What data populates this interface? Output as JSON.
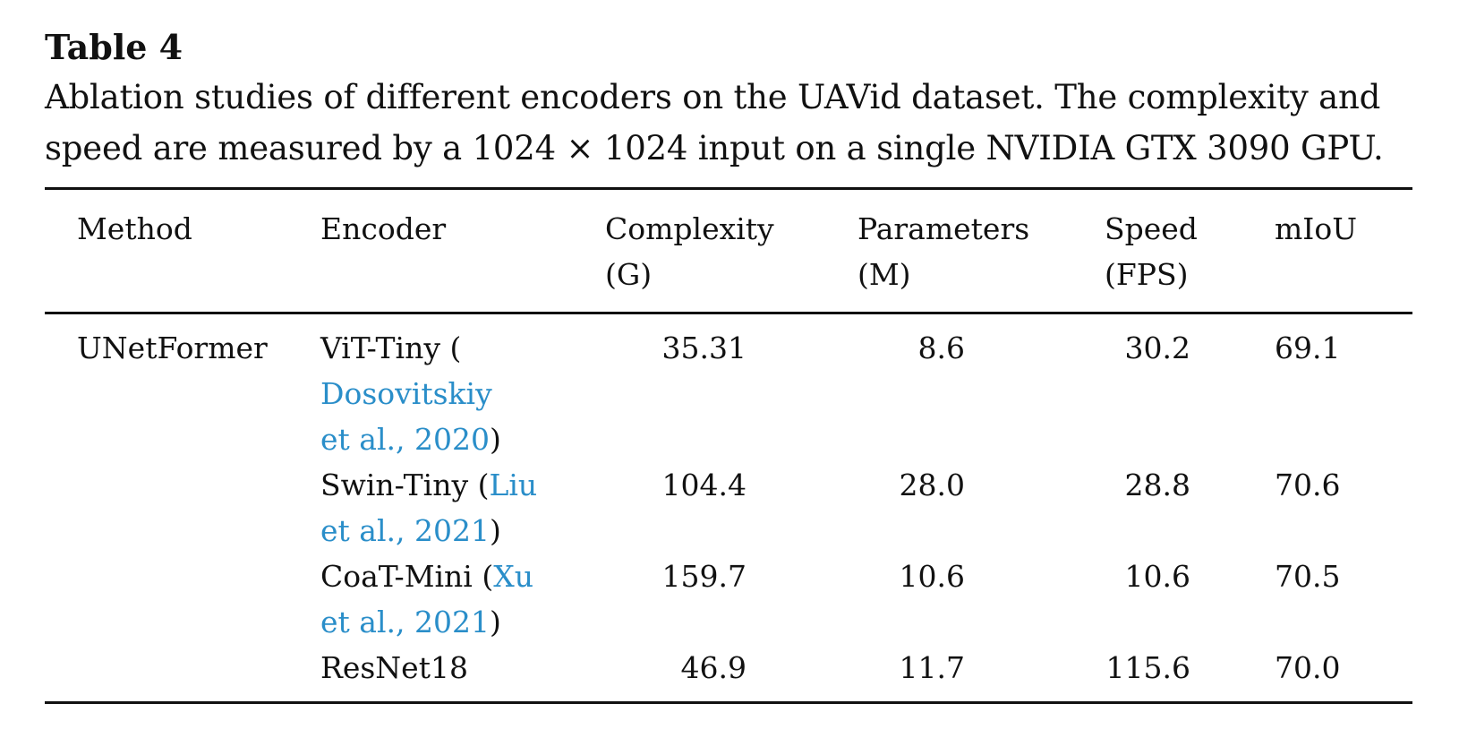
{
  "title": "Table 4",
  "caption_line1": "Ablation studies of different encoders on the UAVid dataset. The complexity and",
  "caption_line2": "speed are measured by a 1024 × 1024 input on a single NVIDIA GTX 3090 GPU.",
  "headers": {
    "method": "Method",
    "encoder": "Encoder",
    "complexity": [
      "Complexity",
      "(G)"
    ],
    "parameters": [
      "Parameters",
      "(M)"
    ],
    "speed": [
      "Speed",
      "(FPS)"
    ],
    "miou": "mIoU"
  },
  "rows": [
    {
      "method": "UNetFormer",
      "encoder_pre": "ViT-Tiny (",
      "encoder_cite_a": "Dosovitskiy",
      "encoder_cite_b": "et al., 2020",
      "encoder_post": ")",
      "complexity": "35.31",
      "parameters": "8.6",
      "speed": "30.2",
      "miou": "69.1"
    },
    {
      "method": "",
      "encoder_pre": "Swin-Tiny (",
      "encoder_cite_a": "Liu",
      "encoder_cite_b": "et al., 2021",
      "encoder_post": ")",
      "complexity": "104.4",
      "parameters": "28.0",
      "speed": "28.8",
      "miou": "70.6"
    },
    {
      "method": "",
      "encoder_pre": "CoaT-Mini (",
      "encoder_cite_a": "Xu",
      "encoder_cite_b": "et al., 2021",
      "encoder_post": ")",
      "complexity": "159.7",
      "parameters": "10.6",
      "speed": "10.6",
      "miou": "70.5"
    },
    {
      "method": "",
      "encoder_pre": "ResNet18",
      "complexity": "46.9",
      "parameters": "11.7",
      "speed": "115.6",
      "miou": "70.0"
    }
  ]
}
